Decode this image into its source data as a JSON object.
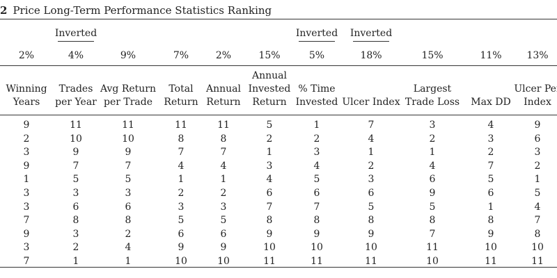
{
  "caption": {
    "number": "2",
    "title": "Price Long-Term Performance Statistics Ranking"
  },
  "inverted_label": "Inverted",
  "columns": [
    {
      "header": [
        "Winning",
        "Years"
      ],
      "weight": "2%",
      "inverted": false
    },
    {
      "header": [
        "Trades",
        "per Year"
      ],
      "weight": "4%",
      "inverted": true
    },
    {
      "header": [
        "Avg Return",
        "per Trade"
      ],
      "weight": "9%",
      "inverted": false
    },
    {
      "header": [
        "Total",
        "Return"
      ],
      "weight": "7%",
      "inverted": false
    },
    {
      "header": [
        "Annual",
        "Return"
      ],
      "weight": "2%",
      "inverted": false
    },
    {
      "header": [
        "Annual",
        "Invested",
        "Return"
      ],
      "weight": "15%",
      "inverted": false
    },
    {
      "header": [
        "% Time",
        "Invested"
      ],
      "weight": "5%",
      "inverted": true
    },
    {
      "header": [
        "Ulcer Index"
      ],
      "weight": "18%",
      "inverted": true
    },
    {
      "header": [
        "Largest",
        "Trade Loss"
      ],
      "weight": "15%",
      "inverted": false
    },
    {
      "header": [
        "Max DD"
      ],
      "weight": "11%",
      "inverted": false
    },
    {
      "header": [
        "Ulcer Per",
        "Index"
      ],
      "weight": "13%",
      "inverted": false
    }
  ],
  "rows": [
    [
      "9",
      "11",
      "11",
      "11",
      "11",
      "5",
      "1",
      "7",
      "3",
      "4",
      "9"
    ],
    [
      "2",
      "10",
      "10",
      "8",
      "8",
      "2",
      "2",
      "4",
      "2",
      "3",
      "6"
    ],
    [
      "3",
      "9",
      "9",
      "7",
      "7",
      "1",
      "3",
      "1",
      "1",
      "2",
      "3"
    ],
    [
      "9",
      "7",
      "7",
      "4",
      "4",
      "3",
      "4",
      "2",
      "4",
      "7",
      "2"
    ],
    [
      "1",
      "5",
      "5",
      "1",
      "1",
      "4",
      "5",
      "3",
      "6",
      "5",
      "1"
    ],
    [
      "3",
      "3",
      "3",
      "2",
      "2",
      "6",
      "6",
      "6",
      "9",
      "6",
      "5"
    ],
    [
      "3",
      "6",
      "6",
      "3",
      "3",
      "7",
      "7",
      "5",
      "5",
      "1",
      "4"
    ],
    [
      "7",
      "8",
      "8",
      "5",
      "5",
      "8",
      "8",
      "8",
      "8",
      "8",
      "7"
    ],
    [
      "9",
      "3",
      "2",
      "6",
      "6",
      "9",
      "9",
      "9",
      "7",
      "9",
      "8"
    ],
    [
      "3",
      "2",
      "4",
      "9",
      "9",
      "10",
      "10",
      "10",
      "11",
      "10",
      "10"
    ],
    [
      "7",
      "1",
      "1",
      "10",
      "10",
      "11",
      "11",
      "11",
      "10",
      "11",
      "11"
    ]
  ]
}
